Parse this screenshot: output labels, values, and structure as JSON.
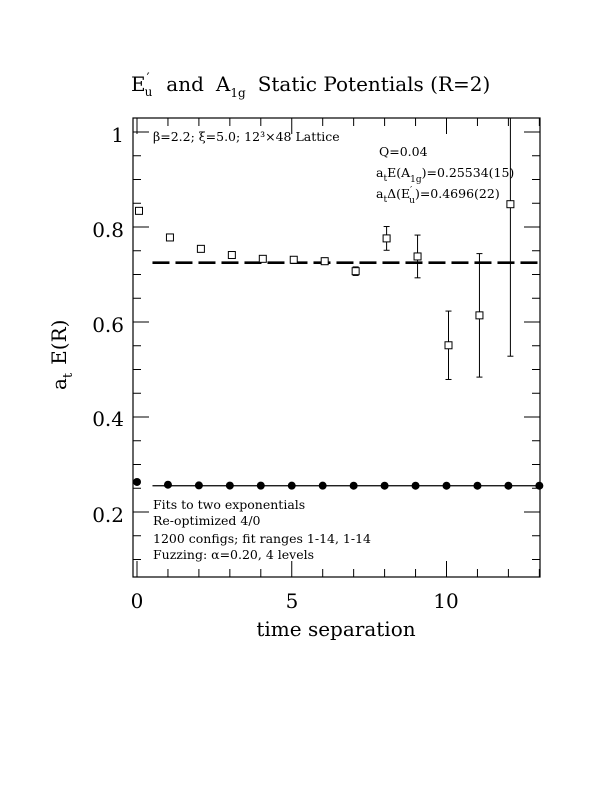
{
  "chart_data": {
    "type": "scatter",
    "title": {
      "e_main": "E",
      "e_sup": "′",
      "e_sub": "u",
      "and": "and",
      "a_main": "A",
      "a_sub": "1g",
      "rest": "Static Potentials (R=2)"
    },
    "xlabel": "time separation",
    "ylabel": {
      "main": "a",
      "sub": "t",
      "rest": "E(R)"
    },
    "xlim": [
      0,
      13
    ],
    "ylim": [
      0.06,
      1.03
    ],
    "x_ticks": [
      0,
      5,
      10
    ],
    "x_tick_labels": [
      "0",
      "5",
      "10"
    ],
    "y_ticks": [
      0.2,
      0.4,
      0.6,
      0.8,
      1.0
    ],
    "y_tick_labels": [
      "0.2",
      "0.4",
      "0.6",
      "0.8",
      "1"
    ],
    "top_left_note": "β=2.2; ξ=5.0; 12³×48 Lattice",
    "fit_info": {
      "q": "Q=0.04",
      "line1_a": "a",
      "line1_sub": "t",
      "line1_b": "E(A",
      "line1_sub2": "1g",
      "line1_c": ")=0.25534(15)",
      "line2_a": "a",
      "line2_sub": "t",
      "line2_b": "Δ(E",
      "line2_sup": "′",
      "line2_sub2": "u",
      "line2_c": ")=0.4696(22)"
    },
    "bottom_notes": [
      "Fits to two exponentials",
      "Re-optimized 4/0",
      "1200 configs; fit ranges 1-14, 1-14",
      "Fuzzing: α=0.20, 4 levels"
    ],
    "series": [
      {
        "marker": "open-square",
        "x": [
          0,
          1,
          2,
          3,
          4,
          5,
          6,
          7,
          8,
          9,
          10,
          11,
          12
        ],
        "y": [
          0.834,
          0.778,
          0.754,
          0.741,
          0.733,
          0.731,
          0.728,
          0.707,
          0.776,
          0.738,
          0.551,
          0.614,
          0.848
        ],
        "err": [
          0.003,
          0.003,
          0.003,
          0.004,
          0.005,
          0.006,
          0.007,
          0.009,
          0.025,
          0.045,
          0.072,
          0.13,
          0.32
        ]
      },
      {
        "marker": "filled-circle",
        "x": [
          0,
          1,
          2,
          3,
          4,
          5,
          6,
          7,
          8,
          9,
          10,
          11,
          12,
          13
        ],
        "y": [
          0.2632,
          0.2575,
          0.256,
          0.2556,
          0.2555,
          0.2554,
          0.2554,
          0.2553,
          0.2553,
          0.2553,
          0.2553,
          0.2553,
          0.2553,
          0.2553
        ],
        "err": [
          0,
          0,
          0,
          0,
          0,
          0,
          0,
          0,
          0,
          0,
          0,
          0,
          0,
          0
        ]
      }
    ],
    "fit_lines": [
      {
        "style": "dashed",
        "x": [
          0.5,
          13
        ],
        "y": 0.7249
      },
      {
        "style": "solid",
        "x": [
          0.5,
          13
        ],
        "y": 0.2553
      }
    ],
    "grid": false
  }
}
